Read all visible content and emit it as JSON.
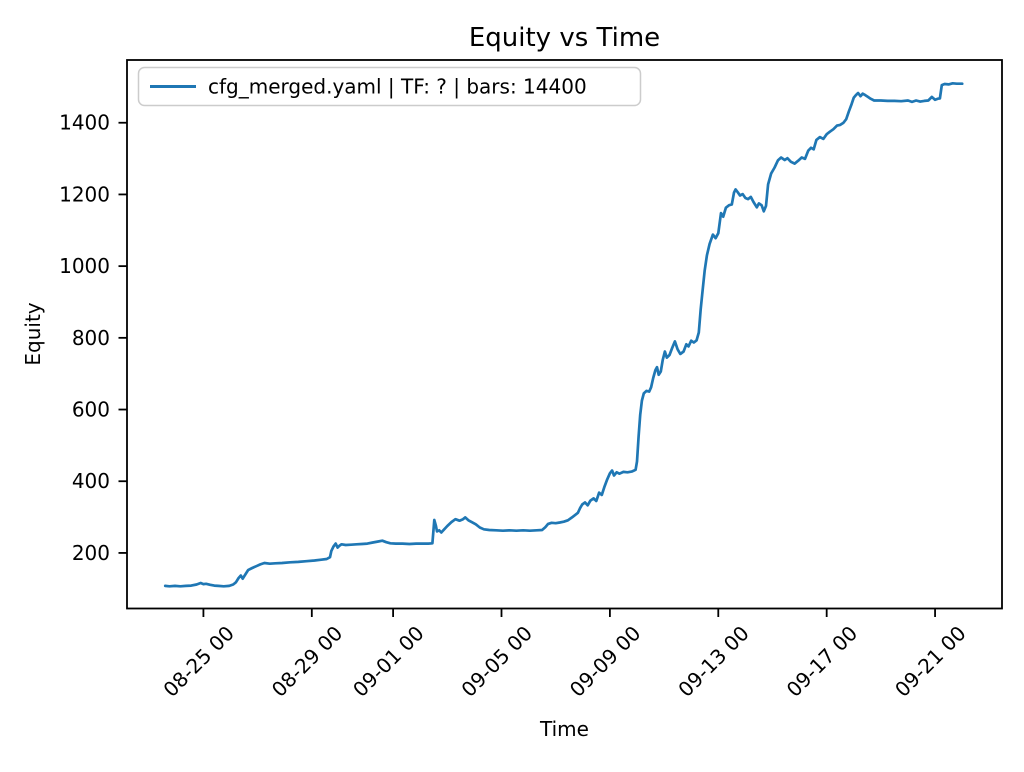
{
  "chart_data": {
    "type": "line",
    "title": "Equity vs Time",
    "xlabel": "Time",
    "ylabel": "Equity",
    "grid": false,
    "legend_position": "upper left",
    "line_color": "#1f77b4",
    "legend_border_color": "#cccccc",
    "background_color": "#ffffff",
    "x_encoding": "days, where x tick '08-25 00' = day 2 (day 0 = 08-23 00)",
    "xlim_days": [
      -0.82,
      31.47
    ],
    "ylim": [
      45,
      1575
    ],
    "y_ticks": [
      200,
      400,
      600,
      800,
      1000,
      1200,
      1400
    ],
    "x_ticks": [
      {
        "day": 2,
        "label": "08-25 00"
      },
      {
        "day": 6,
        "label": "08-29 00"
      },
      {
        "day": 9,
        "label": "09-01 00"
      },
      {
        "day": 13,
        "label": "09-05 00"
      },
      {
        "day": 17,
        "label": "09-09 00"
      },
      {
        "day": 21,
        "label": "09-13 00"
      },
      {
        "day": 25,
        "label": "09-17 00"
      },
      {
        "day": 29,
        "label": "09-21 00"
      }
    ],
    "series": [
      {
        "name": "cfg_merged.yaml | TF: ? | bars: 14400",
        "points": [
          [
            0.59,
            108
          ],
          [
            0.75,
            107
          ],
          [
            0.95,
            108
          ],
          [
            1.15,
            107
          ],
          [
            1.35,
            108
          ],
          [
            1.55,
            109
          ],
          [
            1.75,
            112
          ],
          [
            1.9,
            116
          ],
          [
            2.0,
            113
          ],
          [
            2.1,
            114
          ],
          [
            2.25,
            111
          ],
          [
            2.4,
            109
          ],
          [
            2.55,
            108
          ],
          [
            2.75,
            107
          ],
          [
            2.95,
            108
          ],
          [
            3.1,
            112
          ],
          [
            3.2,
            118
          ],
          [
            3.3,
            130
          ],
          [
            3.38,
            137
          ],
          [
            3.45,
            128
          ],
          [
            3.55,
            140
          ],
          [
            3.65,
            152
          ],
          [
            3.8,
            158
          ],
          [
            3.95,
            163
          ],
          [
            4.1,
            168
          ],
          [
            4.25,
            172
          ],
          [
            4.45,
            170
          ],
          [
            4.65,
            171
          ],
          [
            4.9,
            172
          ],
          [
            5.2,
            174
          ],
          [
            5.5,
            175
          ],
          [
            5.8,
            177
          ],
          [
            6.1,
            179
          ],
          [
            6.35,
            181
          ],
          [
            6.55,
            183
          ],
          [
            6.67,
            188
          ],
          [
            6.72,
            205
          ],
          [
            6.8,
            218
          ],
          [
            6.88,
            226
          ],
          [
            6.95,
            215
          ],
          [
            7.02,
            220
          ],
          [
            7.1,
            224
          ],
          [
            7.25,
            222
          ],
          [
            7.45,
            223
          ],
          [
            7.65,
            224
          ],
          [
            7.85,
            225
          ],
          [
            8.05,
            226
          ],
          [
            8.25,
            229
          ],
          [
            8.45,
            232
          ],
          [
            8.6,
            234
          ],
          [
            8.75,
            230
          ],
          [
            8.9,
            227
          ],
          [
            9.1,
            226
          ],
          [
            9.35,
            226
          ],
          [
            9.6,
            225
          ],
          [
            9.85,
            226
          ],
          [
            10.1,
            226
          ],
          [
            10.3,
            226
          ],
          [
            10.45,
            227
          ],
          [
            10.52,
            292
          ],
          [
            10.58,
            276
          ],
          [
            10.62,
            260
          ],
          [
            10.7,
            263
          ],
          [
            10.78,
            257
          ],
          [
            10.88,
            265
          ],
          [
            11.0,
            275
          ],
          [
            11.15,
            286
          ],
          [
            11.3,
            294
          ],
          [
            11.45,
            290
          ],
          [
            11.58,
            294
          ],
          [
            11.66,
            299
          ],
          [
            11.78,
            291
          ],
          [
            11.9,
            286
          ],
          [
            12.05,
            280
          ],
          [
            12.2,
            271
          ],
          [
            12.35,
            266
          ],
          [
            12.55,
            264
          ],
          [
            12.8,
            263
          ],
          [
            13.05,
            262
          ],
          [
            13.3,
            263
          ],
          [
            13.55,
            262
          ],
          [
            13.8,
            263
          ],
          [
            14.05,
            262
          ],
          [
            14.3,
            263
          ],
          [
            14.5,
            264
          ],
          [
            14.62,
            272
          ],
          [
            14.72,
            281
          ],
          [
            14.85,
            284
          ],
          [
            15.0,
            283
          ],
          [
            15.15,
            285
          ],
          [
            15.3,
            287
          ],
          [
            15.45,
            291
          ],
          [
            15.6,
            299
          ],
          [
            15.72,
            306
          ],
          [
            15.82,
            312
          ],
          [
            15.9,
            325
          ],
          [
            15.98,
            335
          ],
          [
            16.08,
            341
          ],
          [
            16.18,
            333
          ],
          [
            16.28,
            346
          ],
          [
            16.4,
            352
          ],
          [
            16.5,
            345
          ],
          [
            16.6,
            368
          ],
          [
            16.7,
            362
          ],
          [
            16.8,
            385
          ],
          [
            16.9,
            405
          ],
          [
            17.0,
            422
          ],
          [
            17.08,
            430
          ],
          [
            17.15,
            416
          ],
          [
            17.25,
            425
          ],
          [
            17.35,
            421
          ],
          [
            17.5,
            426
          ],
          [
            17.65,
            425
          ],
          [
            17.8,
            427
          ],
          [
            17.95,
            432
          ],
          [
            18.0,
            455
          ],
          [
            18.06,
            525
          ],
          [
            18.12,
            585
          ],
          [
            18.18,
            625
          ],
          [
            18.25,
            645
          ],
          [
            18.35,
            652
          ],
          [
            18.45,
            650
          ],
          [
            18.52,
            662
          ],
          [
            18.6,
            688
          ],
          [
            18.68,
            710
          ],
          [
            18.74,
            718
          ],
          [
            18.8,
            697
          ],
          [
            18.88,
            706
          ],
          [
            18.95,
            738
          ],
          [
            19.03,
            762
          ],
          [
            19.1,
            745
          ],
          [
            19.2,
            752
          ],
          [
            19.3,
            772
          ],
          [
            19.4,
            790
          ],
          [
            19.5,
            768
          ],
          [
            19.6,
            755
          ],
          [
            19.72,
            762
          ],
          [
            19.82,
            782
          ],
          [
            19.9,
            776
          ],
          [
            20.0,
            792
          ],
          [
            20.1,
            787
          ],
          [
            20.2,
            793
          ],
          [
            20.28,
            815
          ],
          [
            20.35,
            880
          ],
          [
            20.42,
            932
          ],
          [
            20.5,
            988
          ],
          [
            20.58,
            1030
          ],
          [
            20.68,
            1062
          ],
          [
            20.8,
            1088
          ],
          [
            20.9,
            1078
          ],
          [
            21.0,
            1092
          ],
          [
            21.1,
            1148
          ],
          [
            21.18,
            1138
          ],
          [
            21.28,
            1163
          ],
          [
            21.4,
            1170
          ],
          [
            21.5,
            1172
          ],
          [
            21.58,
            1205
          ],
          [
            21.64,
            1214
          ],
          [
            21.72,
            1206
          ],
          [
            21.8,
            1197
          ],
          [
            21.9,
            1201
          ],
          [
            22.0,
            1190
          ],
          [
            22.1,
            1187
          ],
          [
            22.2,
            1193
          ],
          [
            22.3,
            1179
          ],
          [
            22.42,
            1164
          ],
          [
            22.5,
            1175
          ],
          [
            22.6,
            1170
          ],
          [
            22.68,
            1153
          ],
          [
            22.76,
            1168
          ],
          [
            22.84,
            1228
          ],
          [
            22.95,
            1258
          ],
          [
            23.08,
            1275
          ],
          [
            23.2,
            1295
          ],
          [
            23.32,
            1303
          ],
          [
            23.45,
            1296
          ],
          [
            23.55,
            1301
          ],
          [
            23.68,
            1291
          ],
          [
            23.82,
            1286
          ],
          [
            23.95,
            1294
          ],
          [
            24.08,
            1303
          ],
          [
            24.2,
            1299
          ],
          [
            24.32,
            1322
          ],
          [
            24.42,
            1330
          ],
          [
            24.52,
            1326
          ],
          [
            24.62,
            1352
          ],
          [
            24.75,
            1360
          ],
          [
            24.88,
            1355
          ],
          [
            25.0,
            1368
          ],
          [
            25.12,
            1375
          ],
          [
            25.25,
            1382
          ],
          [
            25.38,
            1392
          ],
          [
            25.5,
            1394
          ],
          [
            25.62,
            1400
          ],
          [
            25.72,
            1410
          ],
          [
            25.82,
            1432
          ],
          [
            25.92,
            1452
          ],
          [
            26.0,
            1470
          ],
          [
            26.08,
            1477
          ],
          [
            26.16,
            1483
          ],
          [
            26.25,
            1474
          ],
          [
            26.33,
            1481
          ],
          [
            26.42,
            1477
          ],
          [
            26.52,
            1472
          ],
          [
            26.62,
            1467
          ],
          [
            26.75,
            1462
          ],
          [
            27.0,
            1462
          ],
          [
            27.25,
            1461
          ],
          [
            27.5,
            1461
          ],
          [
            27.75,
            1460
          ],
          [
            28.0,
            1462
          ],
          [
            28.15,
            1458
          ],
          [
            28.3,
            1462
          ],
          [
            28.45,
            1459
          ],
          [
            28.6,
            1461
          ],
          [
            28.75,
            1462
          ],
          [
            28.88,
            1472
          ],
          [
            29.0,
            1464
          ],
          [
            29.1,
            1467
          ],
          [
            29.18,
            1468
          ],
          [
            29.25,
            1505
          ],
          [
            29.35,
            1508
          ],
          [
            29.5,
            1507
          ],
          [
            29.65,
            1510
          ],
          [
            29.8,
            1509
          ],
          [
            30.0,
            1509
          ]
        ]
      }
    ]
  }
}
